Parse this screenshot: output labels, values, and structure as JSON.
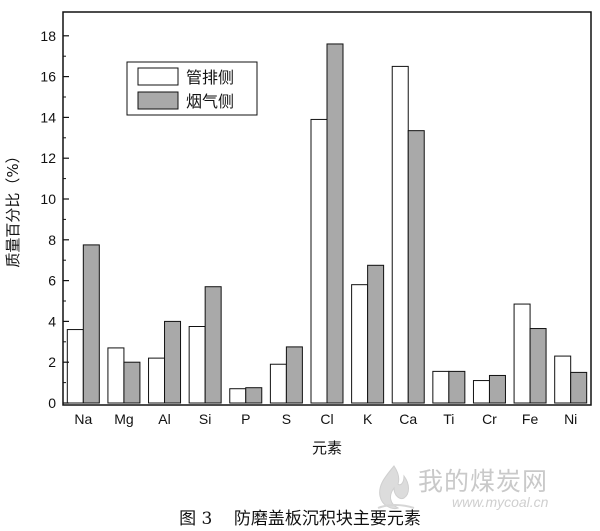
{
  "chart_data": {
    "type": "bar",
    "categories": [
      "Na",
      "Mg",
      "Al",
      "Si",
      "P",
      "S",
      "Cl",
      "K",
      "Ca",
      "Ti",
      "Cr",
      "Fe",
      "Ni"
    ],
    "series": [
      {
        "name": "管排侧",
        "values": [
          3.6,
          2.7,
          2.2,
          3.75,
          0.7,
          1.9,
          13.9,
          5.8,
          16.5,
          1.55,
          1.1,
          4.85,
          2.3
        ],
        "color": "#ffffff"
      },
      {
        "name": "烟气侧",
        "values": [
          7.75,
          2.0,
          4.0,
          5.7,
          0.75,
          2.75,
          17.6,
          6.75,
          13.35,
          1.55,
          1.35,
          3.65,
          1.5
        ],
        "color": "#a9a9a9"
      }
    ],
    "xlabel": "元素",
    "ylabel": "质量百分比（%）",
    "ylim": [
      0,
      19
    ],
    "yticks": [
      0,
      2,
      4,
      6,
      8,
      10,
      12,
      14,
      16,
      18
    ],
    "legend_position": "top-left",
    "grid": false
  },
  "caption": "图 3    防磨盖板沉积块主要元素",
  "watermark": {
    "text": "我的煤炭网",
    "url": "www.mycoal.cn"
  }
}
